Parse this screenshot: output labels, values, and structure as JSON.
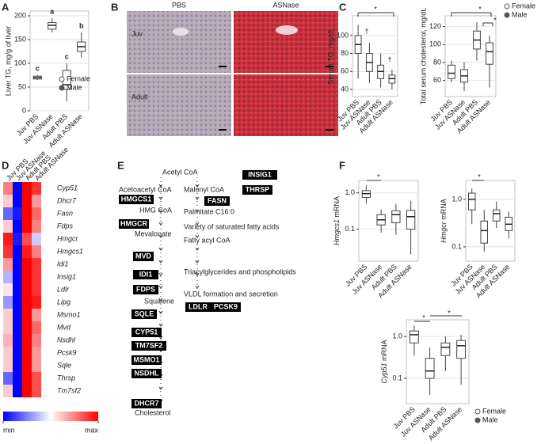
{
  "panels": [
    "A",
    "B",
    "C",
    "D",
    "E",
    "F"
  ],
  "micrograph": {
    "columns": [
      "PBS",
      "ASNase"
    ],
    "rows": [
      "Juv",
      "Adult"
    ]
  },
  "chart_data": [
    {
      "type": "box",
      "ylabel": "Liver TG, mg/g of liver",
      "categories": [
        "Juv PBS",
        "Juv ASNase",
        "Adult PBS",
        "Adult ASNase"
      ],
      "boxes": [
        [
          65,
          67,
          70,
          73,
          75
        ],
        [
          165,
          172,
          180,
          186,
          195
        ],
        [
          20,
          45,
          55,
          85,
          100
        ],
        [
          112,
          125,
          135,
          145,
          165
        ]
      ],
      "letters": [
        "c",
        "a",
        "c",
        "b"
      ],
      "ylim": [
        0,
        210
      ],
      "yticks": [
        0,
        50,
        100,
        150,
        200
      ],
      "legend": [
        "Female",
        "Male"
      ]
    },
    {
      "type": "box",
      "ylabel": "Serum TG, mg/dL",
      "categories": [
        "Juv PBS",
        "Juv ASNase",
        "Adult PBS",
        "Adult ASNase"
      ],
      "boxes": [
        [
          52,
          80,
          90,
          100,
          112
        ],
        [
          47,
          60,
          70,
          80,
          92
        ],
        [
          42,
          52,
          60,
          67,
          80
        ],
        [
          40,
          47,
          52,
          56,
          62
        ]
      ],
      "annotations": [
        "*",
        "†",
        "†"
      ],
      "ylim": [
        32,
        122
      ],
      "yticks": [
        40,
        60,
        80,
        100
      ]
    },
    {
      "type": "box",
      "ylabel": "Total serum cholesterol, mg/dL",
      "categories": [
        "Juv PBS",
        "Juv ASNase",
        "Adult PBS",
        "Adult ASNase"
      ],
      "boxes": [
        [
          58,
          62,
          68,
          77,
          82
        ],
        [
          48,
          58,
          65,
          72,
          80
        ],
        [
          82,
          95,
          105,
          115,
          125
        ],
        [
          52,
          78,
          92,
          102,
          110
        ]
      ],
      "annotations": [
        "*",
        "*"
      ],
      "ylim": [
        42,
        132
      ],
      "yticks": [
        60,
        80,
        100,
        120
      ],
      "legend": [
        "Female",
        "Male"
      ]
    },
    {
      "type": "heatmap",
      "columns": [
        "Juv PBS",
        "Juv ASNase",
        "Adult PBS",
        "Adult ASNase"
      ],
      "rows": [
        "Cyp51",
        "Dhcr7",
        "Fasn",
        "Fdps",
        "Hmgcr",
        "Hmgcs1",
        "Idi1",
        "Insig1",
        "Ldlr",
        "Lipg",
        "Msmo1",
        "Mvd",
        "Nsdhl",
        "Pcsk9",
        "Sqle",
        "Thrsp",
        "Tm7sf2"
      ],
      "values": [
        [
          0.75,
          0,
          1,
          0.9
        ],
        [
          0.6,
          0,
          1,
          0.7
        ],
        [
          0.2,
          0.05,
          1,
          0.8
        ],
        [
          0.6,
          0,
          1,
          0.75
        ],
        [
          0.95,
          0.05,
          0.85,
          0.4
        ],
        [
          0.9,
          0,
          0.95,
          0.75
        ],
        [
          0.7,
          0,
          1,
          0.9
        ],
        [
          0.35,
          0,
          1,
          0.9
        ],
        [
          0.55,
          0,
          1,
          0.9
        ],
        [
          0.3,
          0,
          1,
          0.95
        ],
        [
          0.6,
          0,
          1,
          0.7
        ],
        [
          0.6,
          0,
          1,
          0.8
        ],
        [
          0.65,
          0,
          1,
          0.75
        ],
        [
          0.6,
          0,
          1,
          0.7
        ],
        [
          0.6,
          0,
          1,
          0.7
        ],
        [
          0.2,
          0,
          1,
          0.85
        ],
        [
          0.6,
          0,
          1,
          0.85
        ]
      ],
      "clim": [
        0,
        1
      ],
      "cticks": [
        {
          "value": 0,
          "label": "min"
        },
        {
          "value": 1,
          "label": "max"
        }
      ]
    },
    {
      "type": "box",
      "ylabel_gene": "Hmgcs1",
      "ylabel": "mRNA",
      "log_y": true,
      "categories": [
        "Juv PBS",
        "Juv ASNase",
        "Adult PBS",
        "Adult ASNase"
      ],
      "boxes": [
        [
          0.5,
          0.75,
          0.95,
          1.15,
          1.6
        ],
        [
          0.08,
          0.13,
          0.18,
          0.25,
          0.35
        ],
        [
          0.07,
          0.15,
          0.25,
          0.32,
          0.5
        ],
        [
          0.02,
          0.1,
          0.22,
          0.33,
          0.6
        ]
      ],
      "annotations": [
        "*"
      ],
      "ylim": [
        0.013,
        2.2
      ],
      "yticks": [
        0.1,
        {
          "value": 1,
          "label": "1.0"
        }
      ]
    },
    {
      "type": "box",
      "ylabel_gene": "Hmgcr",
      "ylabel": "mRNA",
      "log_y": true,
      "categories": [
        "Juv PBS",
        "Juv ASNase",
        "Adult PBS",
        "Adult ASNase"
      ],
      "boxes": [
        [
          0.3,
          0.6,
          1,
          1.35,
          1.7
        ],
        [
          0.08,
          0.12,
          0.22,
          0.35,
          0.6
        ],
        [
          0.25,
          0.35,
          0.5,
          0.6,
          0.9
        ],
        [
          0.15,
          0.22,
          0.3,
          0.42,
          0.55
        ]
      ],
      "annotations": [
        "*"
      ],
      "ylim": [
        0.05,
        2.5
      ],
      "yticks": [
        0.1,
        {
          "value": 1,
          "label": "1.0"
        }
      ]
    },
    {
      "type": "box",
      "ylabel_gene": "Cyp51",
      "ylabel": "mRNA",
      "log_y": true,
      "categories": [
        "Juv PBS",
        "Juv ASNase",
        "Adult PBS",
        "Adult ASNase"
      ],
      "boxes": [
        [
          0.35,
          0.7,
          1.1,
          1.35,
          1.8
        ],
        [
          0.04,
          0.1,
          0.15,
          0.3,
          0.55
        ],
        [
          0.15,
          0.35,
          0.55,
          0.7,
          1
        ],
        [
          0.07,
          0.3,
          0.6,
          0.8,
          1.1
        ]
      ],
      "annotations": [
        "*",
        "*"
      ],
      "ylim": [
        0.025,
        2.5
      ],
      "yticks": [
        0.1,
        {
          "value": 1,
          "label": "1.0"
        }
      ],
      "legend": [
        "Female",
        "Male"
      ]
    }
  ],
  "pathway": {
    "nodes": [
      {
        "label": "Acetyl CoA"
      },
      {
        "label": "Acetoacetyl CoA"
      },
      {
        "label": "HMGCS1",
        "enzyme": true
      },
      {
        "label": "HMG CoA"
      },
      {
        "label": "HMGCR",
        "enzyme": true
      },
      {
        "label": "Mevalonate"
      },
      {
        "label": "MVD",
        "enzyme": true
      },
      {
        "label": "IDI1",
        "enzyme": true
      },
      {
        "label": "FDPS",
        "enzyme": true
      },
      {
        "label": "Squalene"
      },
      {
        "label": "SQLE",
        "enzyme": true
      },
      {
        "label": "CYP51",
        "enzyme": true
      },
      {
        "label": "TM7SF2",
        "enzyme": true
      },
      {
        "label": "MSMO1",
        "enzyme": true
      },
      {
        "label": "NSDHL",
        "enzyme": true
      },
      {
        "label": "DHCR7",
        "enzyme": true
      },
      {
        "label": "Cholesterol"
      },
      {
        "label": "Malonyl CoA"
      },
      {
        "label": "FASN",
        "enzyme": true
      },
      {
        "label": "Palmitate C16:0"
      },
      {
        "label": "Variety of saturated fatty acids"
      },
      {
        "label": "Fatty acyl CoA"
      },
      {
        "label": "Triacylglycerides and phospholipids"
      },
      {
        "label": "VLDL formation and secretion"
      },
      {
        "label": "LDLR",
        "enzyme": true
      },
      {
        "label": "PCSK9",
        "enzyme": true
      },
      {
        "label": "INSIG1",
        "enzyme": true
      },
      {
        "label": "THRSP",
        "enzyme": true
      }
    ]
  }
}
